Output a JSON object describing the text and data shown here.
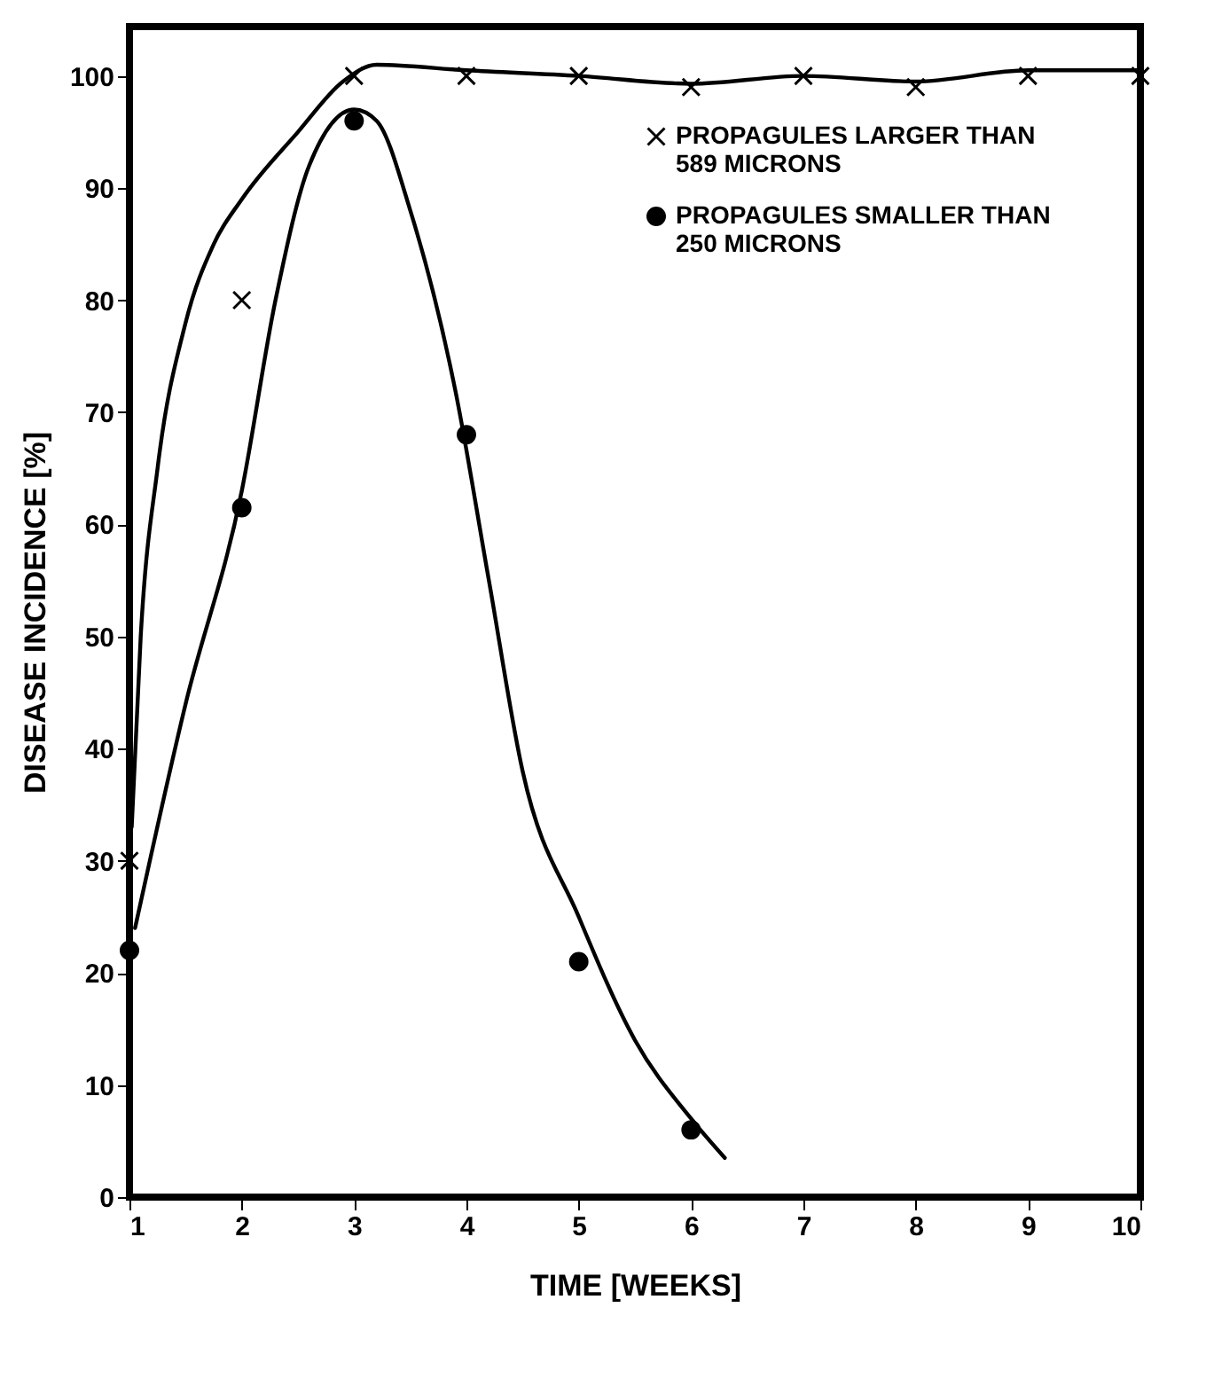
{
  "chart_data": {
    "type": "scatter",
    "xlabel": "TIME  [WEEKS]",
    "ylabel": "DISEASE INCIDENCE [%]",
    "xlim": [
      1,
      10
    ],
    "xticks": [
      1,
      2,
      3,
      4,
      5,
      6,
      7,
      8,
      9,
      10
    ],
    "ylim": [
      0,
      104.4
    ],
    "yticks": [
      0,
      10,
      20,
      30,
      40,
      50,
      60,
      70,
      80,
      90,
      100
    ],
    "grid": false,
    "legend": "top right",
    "series": [
      {
        "name": "PROPAGULES LARGER THAN 589 MICRONS",
        "marker": "cross",
        "color": "#000000",
        "x": [
          1,
          2,
          3,
          4,
          5,
          6,
          7,
          8,
          9,
          10
        ],
        "values": [
          30,
          80,
          100,
          100,
          100,
          99,
          100,
          99,
          100,
          100
        ]
      },
      {
        "name": "PROPAGULES SMALLER THAN 250 MICRONS",
        "marker": "circle",
        "color": "#000000",
        "x": [
          1,
          2,
          3,
          4,
          5,
          6
        ],
        "values": [
          22,
          61.5,
          96,
          68,
          21,
          6
        ]
      },
      {
        "type": "line",
        "marker": "none",
        "line_style": "solid",
        "color": "#000000",
        "x": [
          1.02,
          1.1,
          1.25,
          1.5,
          1.75,
          2,
          2.5,
          2.9,
          3.2,
          4,
          5,
          6,
          7,
          8,
          9,
          10
        ],
        "values": [
          33,
          50,
          65,
          78,
          85,
          89,
          95,
          99.5,
          101,
          100.5,
          100,
          99.3,
          100,
          99.5,
          100.5,
          100.5
        ]
      },
      {
        "type": "line",
        "marker": "none",
        "line_style": "solid",
        "color": "#000000",
        "x": [
          1.05,
          1.5,
          2,
          2.3,
          2.6,
          3,
          3.2,
          3.5,
          3.9,
          4.2,
          4.5,
          5,
          5.5,
          6,
          6.3
        ],
        "values": [
          24,
          44,
          63,
          80,
          92,
          97,
          96,
          88,
          72,
          55,
          38,
          25,
          14,
          7,
          3.5
        ]
      }
    ]
  }
}
